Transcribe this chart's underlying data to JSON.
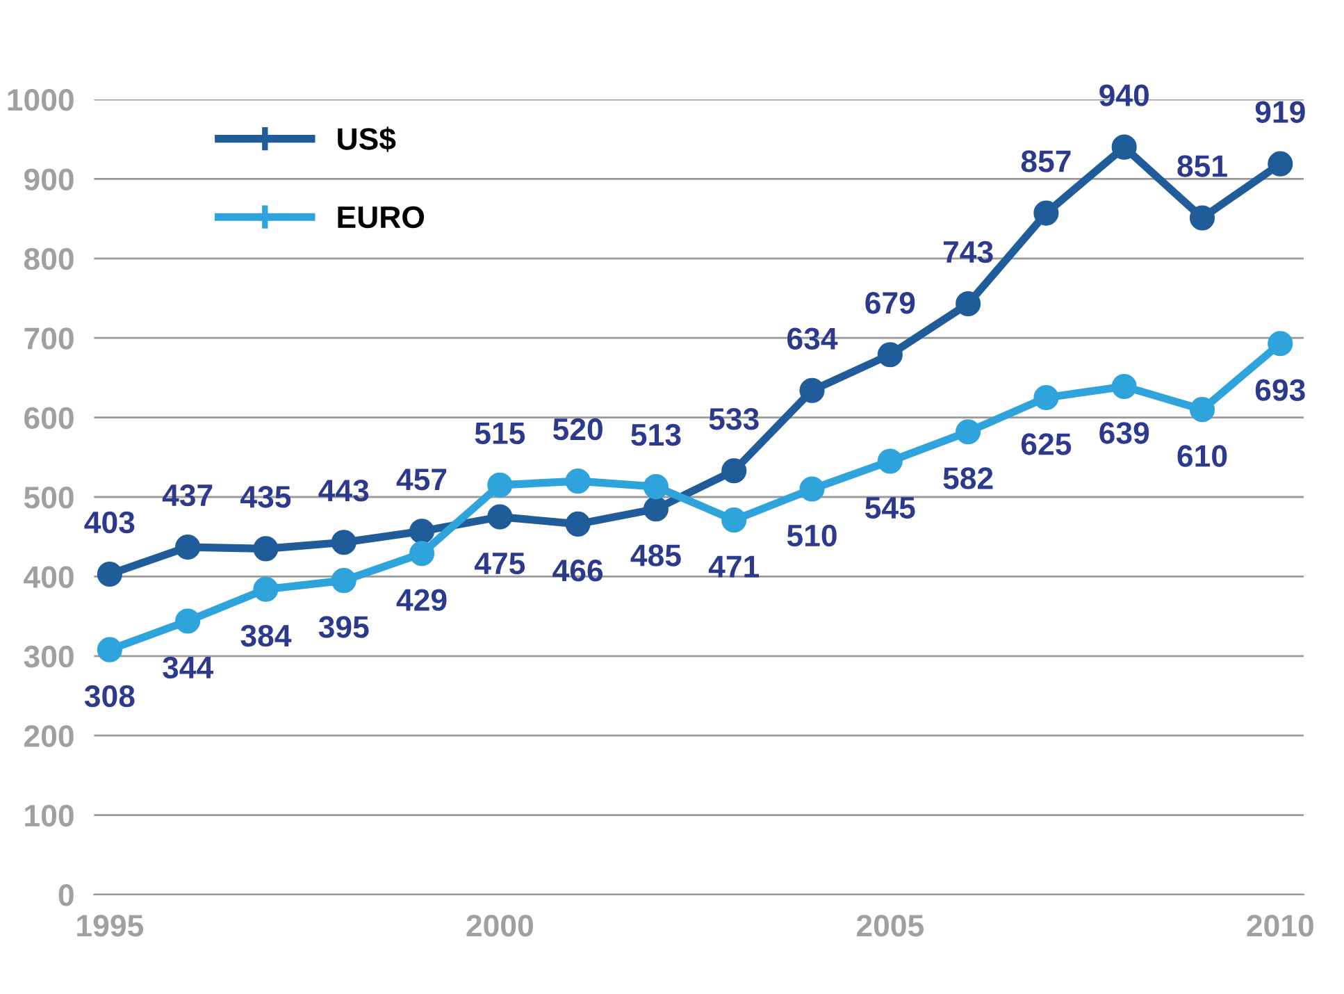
{
  "chart_data": {
    "type": "line",
    "x": [
      1995,
      1996,
      1997,
      1998,
      1999,
      2000,
      2001,
      2002,
      2003,
      2004,
      2005,
      2006,
      2007,
      2008,
      2009,
      2010
    ],
    "series": [
      {
        "name": "US$",
        "color": "#1f5c99",
        "values": [
          403,
          437,
          435,
          443,
          457,
          475,
          466,
          485,
          533,
          634,
          679,
          743,
          857,
          940,
          851,
          919
        ]
      },
      {
        "name": "EURO",
        "color": "#2ea3dc",
        "values": [
          308,
          344,
          384,
          395,
          429,
          515,
          520,
          513,
          471,
          510,
          545,
          582,
          625,
          639,
          610,
          693
        ]
      }
    ],
    "xlim": [
      1994.8,
      2010.3
    ],
    "xticks": [
      1995,
      2000,
      2005,
      2010
    ],
    "ylim": [
      0,
      1000
    ],
    "yticks": [
      0,
      100,
      200,
      300,
      400,
      500,
      600,
      700,
      800,
      900,
      1000
    ],
    "grid": "y",
    "legend": "top left",
    "marker": "circle",
    "line_style": "solid",
    "data_labels": true
  }
}
